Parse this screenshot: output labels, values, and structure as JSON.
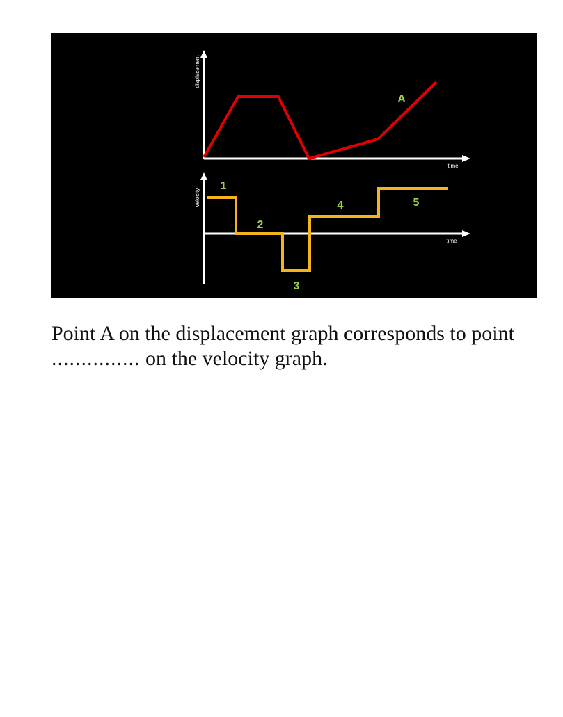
{
  "figure": {
    "displacement_graph": {
      "y_label": "displacement",
      "x_label": "time",
      "point_label": "A",
      "line_color": "#e00000"
    },
    "velocity_graph": {
      "y_label": "velocity",
      "x_label": "time",
      "segment_labels": [
        "1",
        "2",
        "3",
        "4",
        "5"
      ],
      "line_color": "#f5b41c"
    },
    "label_color": "#9ed14a",
    "background_color": "#000000"
  },
  "question": {
    "line1": "Point A on the displacement graph corresponds to point",
    "blank": "...............",
    "line2": " on the velocity graph."
  }
}
